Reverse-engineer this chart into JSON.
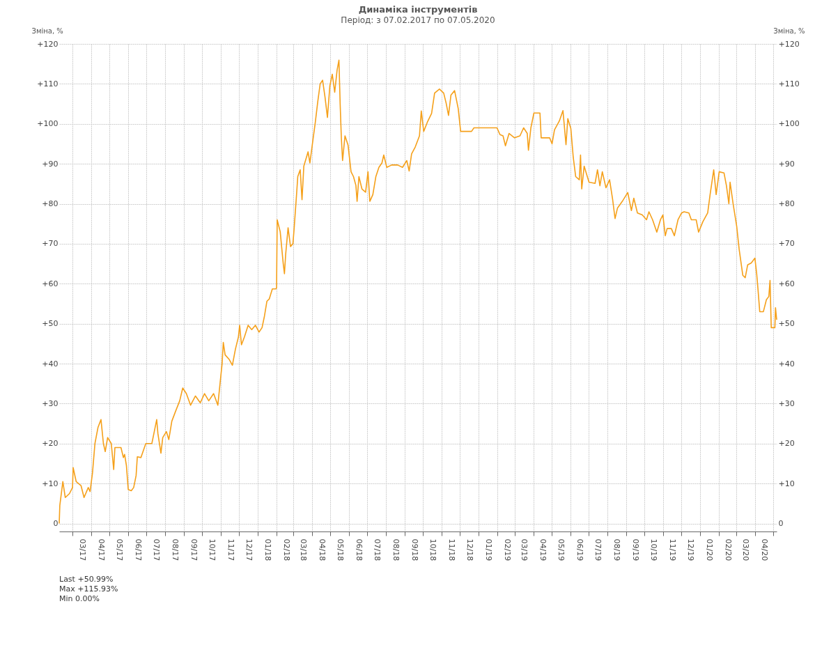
{
  "chart_data": {
    "type": "line",
    "title": "Динаміка інструментів",
    "subtitle": "Період: з 07.02.2017 по 07.05.2020",
    "ylabel": "Зміна, %",
    "y2label": "Зміна, %",
    "x": [
      "2017-02-07",
      "2017-02-08",
      "2017-02-13",
      "2017-02-17",
      "2017-02-24",
      "2017-03-01",
      "2017-03-02",
      "2017-03-07",
      "2017-03-15",
      "2017-03-20",
      "2017-03-27",
      "2017-03-30",
      "2017-04-03",
      "2017-04-07",
      "2017-04-12",
      "2017-04-17",
      "2017-04-21",
      "2017-04-24",
      "2017-04-28",
      "2017-05-04",
      "2017-05-08",
      "2017-05-10",
      "2017-05-20",
      "2017-05-24",
      "2017-05-26",
      "2017-05-29",
      "2017-06-01",
      "2017-06-06",
      "2017-06-10",
      "2017-06-14",
      "2017-06-16",
      "2017-06-22",
      "2017-06-30",
      "2017-07-10",
      "2017-07-14",
      "2017-07-18",
      "2017-07-20",
      "2017-07-25",
      "2017-07-28",
      "2017-08-03",
      "2017-08-07",
      "2017-08-12",
      "2017-08-18",
      "2017-08-25",
      "2017-08-30",
      "2017-09-05",
      "2017-09-12",
      "2017-09-20",
      "2017-09-28",
      "2017-10-05",
      "2017-10-12",
      "2017-10-20",
      "2017-10-27",
      "2017-10-31",
      "2017-11-03",
      "2017-11-05",
      "2017-11-08",
      "2017-11-15",
      "2017-11-20",
      "2017-11-25",
      "2017-11-30",
      "2017-12-02",
      "2017-12-05",
      "2017-12-10",
      "2017-12-16",
      "2017-12-22",
      "2017-12-28",
      "2018-01-03",
      "2018-01-08",
      "2018-01-12",
      "2018-01-16",
      "2018-01-20",
      "2018-01-25",
      "2018-01-31",
      "2018-02-01",
      "2018-02-02",
      "2018-02-07",
      "2018-02-12",
      "2018-02-14",
      "2018-02-16",
      "2018-02-20",
      "2018-02-24",
      "2018-02-28",
      "2018-03-02",
      "2018-03-06",
      "2018-03-08",
      "2018-03-12",
      "2018-03-15",
      "2018-03-18",
      "2018-03-25",
      "2018-03-28",
      "2018-04-02",
      "2018-04-06",
      "2018-04-10",
      "2018-04-14",
      "2018-04-18",
      "2018-04-22",
      "2018-04-26",
      "2018-04-30",
      "2018-05-04",
      "2018-05-08",
      "2018-05-12",
      "2018-05-15",
      "2018-05-17",
      "2018-05-19",
      "2018-05-21",
      "2018-05-25",
      "2018-05-30",
      "2018-06-04",
      "2018-06-08",
      "2018-06-12",
      "2018-06-14",
      "2018-06-17",
      "2018-06-22",
      "2018-06-28",
      "2018-07-02",
      "2018-07-05",
      "2018-07-10",
      "2018-07-15",
      "2018-07-20",
      "2018-07-25",
      "2018-07-28",
      "2018-08-02",
      "2018-08-10",
      "2018-08-20",
      "2018-08-28",
      "2018-09-04",
      "2018-09-08",
      "2018-09-12",
      "2018-09-18",
      "2018-09-25",
      "2018-09-28",
      "2018-10-02",
      "2018-10-08",
      "2018-10-15",
      "2018-10-20",
      "2018-10-28",
      "2018-11-04",
      "2018-11-08",
      "2018-11-12",
      "2018-11-16",
      "2018-11-22",
      "2018-11-28",
      "2018-12-02",
      "2018-12-20",
      "2018-12-24",
      "2019-01-31",
      "2019-02-05",
      "2019-02-10",
      "2019-02-14",
      "2019-02-20",
      "2019-03-01",
      "2019-03-10",
      "2019-03-16",
      "2019-03-22",
      "2019-03-24",
      "2019-03-28",
      "2019-04-02",
      "2019-04-12",
      "2019-04-14",
      "2019-04-28",
      "2019-05-02",
      "2019-05-06",
      "2019-05-14",
      "2019-05-20",
      "2019-05-25",
      "2019-05-28",
      "2019-06-02",
      "2019-06-06",
      "2019-06-10",
      "2019-06-16",
      "2019-06-18",
      "2019-06-20",
      "2019-06-24",
      "2019-07-02",
      "2019-07-12",
      "2019-07-16",
      "2019-07-20",
      "2019-07-24",
      "2019-07-30",
      "2019-08-05",
      "2019-08-10",
      "2019-08-14",
      "2019-08-18",
      "2019-08-26",
      "2019-09-04",
      "2019-09-10",
      "2019-09-14",
      "2019-09-20",
      "2019-09-28",
      "2019-10-05",
      "2019-10-09",
      "2019-10-15",
      "2019-10-22",
      "2019-10-28",
      "2019-11-01",
      "2019-11-05",
      "2019-11-08",
      "2019-11-15",
      "2019-11-20",
      "2019-11-26",
      "2019-12-02",
      "2019-12-06",
      "2019-12-14",
      "2019-12-18",
      "2019-12-26",
      "2019-12-30",
      "2020-01-06",
      "2020-01-14",
      "2020-01-18",
      "2020-01-24",
      "2020-01-28",
      "2020-02-02",
      "2020-02-10",
      "2020-02-14",
      "2020-02-18",
      "2020-02-20",
      "2020-02-25",
      "2020-03-02",
      "2020-03-06",
      "2020-03-12",
      "2020-03-16",
      "2020-03-20",
      "2020-03-26",
      "2020-04-01",
      "2020-04-04",
      "2020-04-06",
      "2020-04-09",
      "2020-04-15",
      "2020-04-20",
      "2020-04-24",
      "2020-04-26",
      "2020-04-28",
      "2020-05-04",
      "2020-05-05",
      "2020-05-07"
    ],
    "series": [
      {
        "color": "#f5a01a",
        "values": [
          0,
          4.5,
          10.5,
          6.5,
          7.5,
          9,
          14,
          10.5,
          9.5,
          6.5,
          9,
          8,
          12.7,
          20,
          24,
          26,
          20,
          18,
          21.5,
          20,
          13.5,
          19,
          19,
          16.5,
          17.3,
          14.5,
          8.5,
          8.2,
          9,
          12,
          16.7,
          16.5,
          20,
          20,
          23,
          26,
          22.5,
          17.6,
          21.5,
          23,
          21,
          25.6,
          28,
          30.7,
          33.9,
          32.5,
          29.6,
          31.9,
          30.2,
          32.5,
          30.7,
          32.5,
          29.6,
          35.6,
          39.9,
          45.3,
          42.2,
          41,
          39.6,
          43.6,
          46.7,
          49.6,
          44.7,
          46.7,
          49.6,
          48.5,
          49.6,
          47.9,
          49,
          51.9,
          55.6,
          56.2,
          58.7,
          58.7,
          59,
          76,
          73,
          65,
          62.5,
          67.3,
          74,
          69.3,
          70,
          73.8,
          82.3,
          86.8,
          88.5,
          81,
          89.4,
          93,
          90.2,
          95.9,
          100.4,
          105.5,
          110,
          110.9,
          106.7,
          101.6,
          109.5,
          112.4,
          107.9,
          113.5,
          115.93,
          105,
          96.4,
          90.8,
          97,
          94.7,
          88,
          86.8,
          84.6,
          80.6,
          86.8,
          83.7,
          82.9,
          88,
          80.6,
          82.3,
          86.8,
          89.1,
          90.2,
          92.2,
          89.1,
          89.7,
          89.7,
          89.1,
          90.8,
          88.2,
          92.5,
          94.2,
          97,
          103.2,
          98.1,
          100.4,
          102.6,
          107.7,
          108.7,
          107.7,
          105.2,
          102.1,
          107.2,
          108.3,
          103.8,
          98.1,
          98.1,
          99,
          99,
          97.3,
          97,
          94.5,
          97.6,
          96.5,
          97,
          99,
          97.6,
          93.4,
          99,
          102.7,
          102.7,
          96.5,
          96.5,
          95,
          98.5,
          100.7,
          103.3,
          94.8,
          101.3,
          98.8,
          91.6,
          86.8,
          86,
          92.2,
          83.7,
          89.4,
          85.4,
          85.1,
          88.5,
          84.5,
          88,
          84,
          86,
          81.1,
          76.3,
          78.9,
          80.6,
          82.8,
          78.3,
          81.4,
          77.7,
          77.2,
          76,
          78,
          76,
          72.9,
          76,
          77.2,
          72,
          73.8,
          73.8,
          72,
          76,
          77.7,
          78,
          77.7,
          76,
          76,
          72.9,
          75.5,
          77.7,
          82.3,
          88.5,
          82.3,
          88,
          87.7,
          84.5,
          80,
          85.4,
          80,
          74.3,
          68.6,
          62.1,
          61.5,
          64.7,
          65.2,
          66.4,
          62.4,
          58.8,
          53,
          53,
          56,
          56.8,
          60.8,
          49,
          49,
          54,
          50.99
        ]
      }
    ],
    "xlim": [
      "2017-02-07",
      "2020-05-07"
    ],
    "xticks": [
      {
        "value": "2017-03-01",
        "label": null
      },
      {
        "value": "2017-04-01",
        "label": null
      },
      {
        "value": "2017-05-01",
        "label": null
      },
      {
        "value": "2017-06-01",
        "label": null
      },
      {
        "value": "2017-07-01",
        "label": null
      },
      {
        "value": "2017-08-01",
        "label": null
      },
      {
        "value": "2017-09-01",
        "label": null
      },
      {
        "value": "2017-10-01",
        "label": null
      },
      {
        "value": "2017-11-01",
        "label": null
      },
      {
        "value": "2017-12-01",
        "label": null
      },
      {
        "value": "2018-01-01",
        "label": null
      },
      {
        "value": "2018-02-01",
        "label": null
      },
      {
        "value": "2018-03-01",
        "label": null
      },
      {
        "value": "2018-04-01",
        "label": null
      },
      {
        "value": "2018-05-01",
        "label": null
      },
      {
        "value": "2018-06-01",
        "label": null
      },
      {
        "value": "2018-07-01",
        "label": null
      },
      {
        "value": "2018-08-01",
        "label": null
      },
      {
        "value": "2018-09-01",
        "label": null
      },
      {
        "value": "2018-10-01",
        "label": null
      },
      {
        "value": "2018-11-01",
        "label": null
      },
      {
        "value": "2018-12-01",
        "label": null
      },
      {
        "value": "2019-01-01",
        "label": null
      },
      {
        "value": "2019-02-01",
        "label": null
      },
      {
        "value": "2019-03-01",
        "label": null
      },
      {
        "value": "2019-04-01",
        "label": null
      },
      {
        "value": "2019-05-01",
        "label": null
      },
      {
        "value": "2019-06-01",
        "label": null
      },
      {
        "value": "2019-07-01",
        "label": null
      },
      {
        "value": "2019-08-01",
        "label": null
      },
      {
        "value": "2019-09-01",
        "label": null
      },
      {
        "value": "2019-10-01",
        "label": null
      },
      {
        "value": "2019-11-01",
        "label": null
      },
      {
        "value": "2019-12-01",
        "label": null
      },
      {
        "value": "2020-01-01",
        "label": null
      },
      {
        "value": "2020-02-01",
        "label": null
      },
      {
        "value": "2020-03-01",
        "label": null
      },
      {
        "value": "2020-04-01",
        "label": null
      },
      {
        "value": "2020-05-01",
        "label": null
      },
      {
        "value": "2017-03-16",
        "label": "03/17"
      },
      {
        "value": "2017-04-16",
        "label": "04/17"
      },
      {
        "value": "2017-05-16",
        "label": "05/17"
      },
      {
        "value": "2017-06-16",
        "label": "06/17"
      },
      {
        "value": "2017-07-16",
        "label": "07/17"
      },
      {
        "value": "2017-08-16",
        "label": "08/17"
      },
      {
        "value": "2017-09-16",
        "label": "09/17"
      },
      {
        "value": "2017-10-16",
        "label": "10/17"
      },
      {
        "value": "2017-11-16",
        "label": "11/17"
      },
      {
        "value": "2017-12-16",
        "label": "12/17"
      },
      {
        "value": "2018-01-16",
        "label": "01/18"
      },
      {
        "value": "2018-02-16",
        "label": "02/18"
      },
      {
        "value": "2018-03-16",
        "label": "03/18"
      },
      {
        "value": "2018-04-16",
        "label": "04/18"
      },
      {
        "value": "2018-05-16",
        "label": "05/18"
      },
      {
        "value": "2018-06-16",
        "label": "06/18"
      },
      {
        "value": "2018-07-16",
        "label": "07/18"
      },
      {
        "value": "2018-08-16",
        "label": "08/18"
      },
      {
        "value": "2018-09-16",
        "label": "09/18"
      },
      {
        "value": "2018-10-16",
        "label": "10/18"
      },
      {
        "value": "2018-11-16",
        "label": "11/18"
      },
      {
        "value": "2018-12-16",
        "label": "12/18"
      },
      {
        "value": "2019-01-16",
        "label": "01/19"
      },
      {
        "value": "2019-02-16",
        "label": "02/19"
      },
      {
        "value": "2019-03-16",
        "label": "03/19"
      },
      {
        "value": "2019-04-16",
        "label": "04/19"
      },
      {
        "value": "2019-05-16",
        "label": "05/19"
      },
      {
        "value": "2019-06-16",
        "label": "06/19"
      },
      {
        "value": "2019-07-16",
        "label": "07/19"
      },
      {
        "value": "2019-08-16",
        "label": "08/19"
      },
      {
        "value": "2019-09-16",
        "label": "09/19"
      },
      {
        "value": "2019-10-16",
        "label": "10/19"
      },
      {
        "value": "2019-11-16",
        "label": "11/19"
      },
      {
        "value": "2019-12-16",
        "label": "12/19"
      },
      {
        "value": "2020-01-16",
        "label": "01/20"
      },
      {
        "value": "2020-02-16",
        "label": "02/20"
      },
      {
        "value": "2020-03-16",
        "label": "03/20"
      },
      {
        "value": "2020-04-16",
        "label": "04/20"
      }
    ],
    "ylim": [
      -2,
      120
    ],
    "yticks": [
      0,
      {
        "value": 10,
        "label": "+10"
      },
      {
        "value": 20,
        "label": "+20"
      },
      {
        "value": 30,
        "label": "+30"
      },
      {
        "value": 40,
        "label": "+40"
      },
      {
        "value": 50,
        "label": "+50"
      },
      {
        "value": 60,
        "label": "+60"
      },
      {
        "value": 70,
        "label": "+70"
      },
      {
        "value": 80,
        "label": "+80"
      },
      {
        "value": 90,
        "label": "+90"
      },
      {
        "value": 100,
        "label": "+100"
      },
      {
        "value": 110,
        "label": "+110"
      },
      {
        "value": 120,
        "label": "+120"
      }
    ],
    "y2lim": [
      -2,
      120
    ],
    "y2ticks": [
      0,
      {
        "value": 10,
        "label": "+10"
      },
      {
        "value": 20,
        "label": "+20"
      },
      {
        "value": 30,
        "label": "+30"
      },
      {
        "value": 40,
        "label": "+40"
      },
      {
        "value": 50,
        "label": "+50"
      },
      {
        "value": 60,
        "label": "+60"
      },
      {
        "value": 70,
        "label": "+70"
      },
      {
        "value": 80,
        "label": "+80"
      },
      {
        "value": 90,
        "label": "+90"
      },
      {
        "value": 100,
        "label": "+100"
      },
      {
        "value": 110,
        "label": "+110"
      },
      {
        "value": 120,
        "label": "+120"
      }
    ],
    "grid": true,
    "marker": "none",
    "line_style": "solid",
    "annotations": [
      "Last +50.99%",
      "Max +115.93%",
      "Min 0.00%"
    ]
  }
}
